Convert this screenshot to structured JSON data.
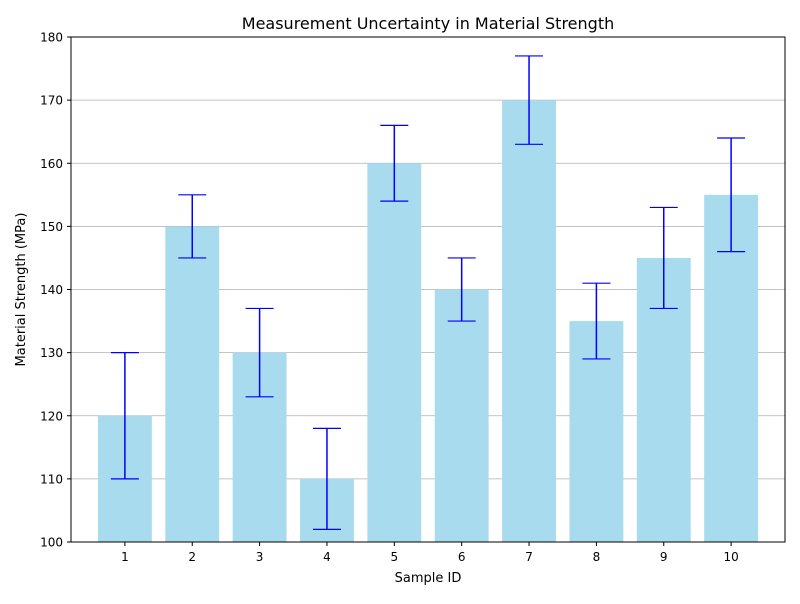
{
  "chart_data": {
    "type": "bar",
    "title": "Measurement Uncertainty in Material Strength",
    "xlabel": "Sample ID",
    "ylabel": "Material Strength (MPa)",
    "categories": [
      "1",
      "2",
      "3",
      "4",
      "5",
      "6",
      "7",
      "8",
      "9",
      "10"
    ],
    "values": [
      120,
      150,
      130,
      110,
      160,
      140,
      170,
      135,
      145,
      155
    ],
    "errors": [
      10,
      5,
      7,
      8,
      6,
      5,
      7,
      6,
      8,
      9
    ],
    "ylim": [
      100,
      180
    ],
    "yticks": [
      100,
      110,
      120,
      130,
      140,
      150,
      160,
      170,
      180
    ],
    "grid": "y-major",
    "colors": {
      "bar": "#a8dbee",
      "errorbar": "#0000ff",
      "grid": "#b0b0b0",
      "axis": "#000000"
    }
  }
}
